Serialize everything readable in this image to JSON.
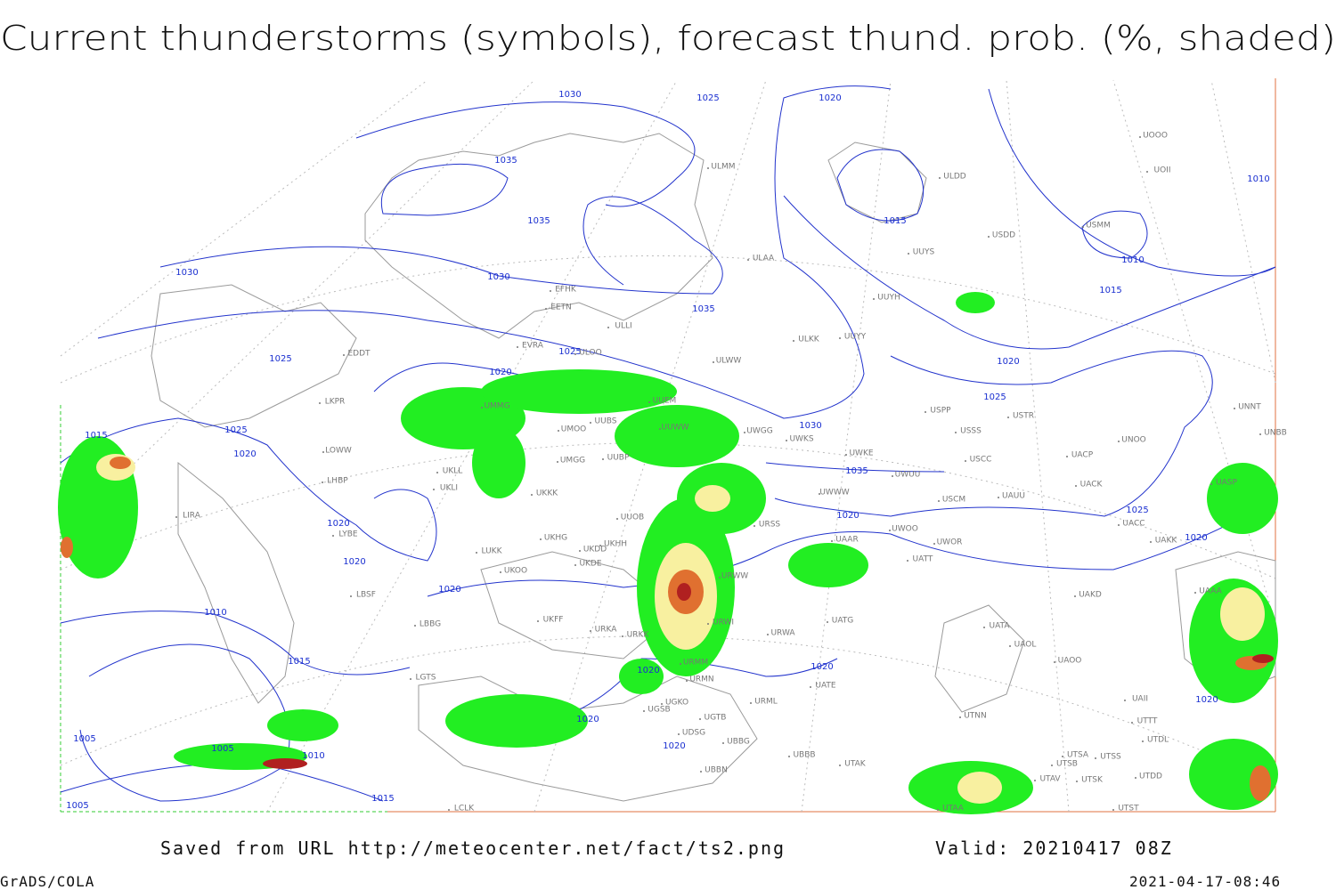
{
  "header": {
    "title": "Current thunderstorms (symbols), forecast thund. prob. (%, shaded)"
  },
  "isobar_labels": [
    "1030",
    "1025",
    "1020",
    "1035",
    "1035",
    "1030",
    "1030",
    "1035",
    "1025",
    "1025",
    "1015",
    "1010",
    "1010",
    "1015",
    "1020",
    "1025",
    "1030",
    "1035",
    "1020",
    "1025",
    "1020",
    "1015",
    "1025",
    "1020",
    "1020",
    "1020",
    "1020",
    "1010",
    "1015",
    "1020",
    "1020",
    "1020",
    "1020",
    "1005",
    "1010",
    "1015",
    "1005",
    "1005",
    "1020",
    "1020"
  ],
  "stations": [
    "ULMM",
    "ULDD",
    "USDD",
    "UUYS",
    "ULAA",
    "USMM",
    "UOOO",
    "UOII",
    "EFHK",
    "EETN",
    "ULLI",
    "UUYH",
    "UUYY",
    "ULKK",
    "EVRA",
    "ULOO",
    "ULWW",
    "EDDT",
    "UUEM",
    "UMMG",
    "UMOO",
    "UUBS",
    "UUWW",
    "UWGG",
    "UWKS",
    "UWKE",
    "USPP",
    "USSS",
    "USTR",
    "UNOO",
    "UNNT",
    "UNBB",
    "USCC",
    "UACP",
    "UACK",
    "UASP",
    "UMGG",
    "UUBP",
    "UKLL",
    "UKLI",
    "UKKK",
    "UUOB",
    "UWWW",
    "UWUU",
    "USCM",
    "UAUU",
    "UACC",
    "UAKK",
    "LKPR",
    "LOWW",
    "LHBP",
    "LIRA",
    "LYBE",
    "UKHH",
    "UKDD",
    "UKHG",
    "LUKK",
    "UKOO",
    "UKDE",
    "URWW",
    "URWI",
    "UAAA",
    "UAKD",
    "UATG",
    "URWA",
    "UATA",
    "UAOL",
    "UAOO",
    "LBSF",
    "LBBG",
    "UKFF",
    "URKA",
    "URKK",
    "URMM",
    "URMN",
    "UATE",
    "URML",
    "LGTS",
    "UGKO",
    "UGSB",
    "UGTB",
    "UDSG",
    "UBBG",
    "UBBB",
    "UTAK",
    "UBBN",
    "UTNN",
    "UTSA",
    "UTSS",
    "UTSB",
    "UTAV",
    "UTSK",
    "UAII",
    "UTTT",
    "UTDL",
    "UTDD",
    "UTST",
    "LCLK",
    "UTAA",
    "URSS",
    "UAAR",
    "UWOO",
    "UWOR",
    "UATT"
  ],
  "footer": {
    "saved": "Saved from URL http://meteocenter.net/fact/ts2.png",
    "valid": "Valid: 20210417 08Z",
    "software": "GrADS/COLA",
    "timestamp": "2021-04-17-08:46"
  }
}
